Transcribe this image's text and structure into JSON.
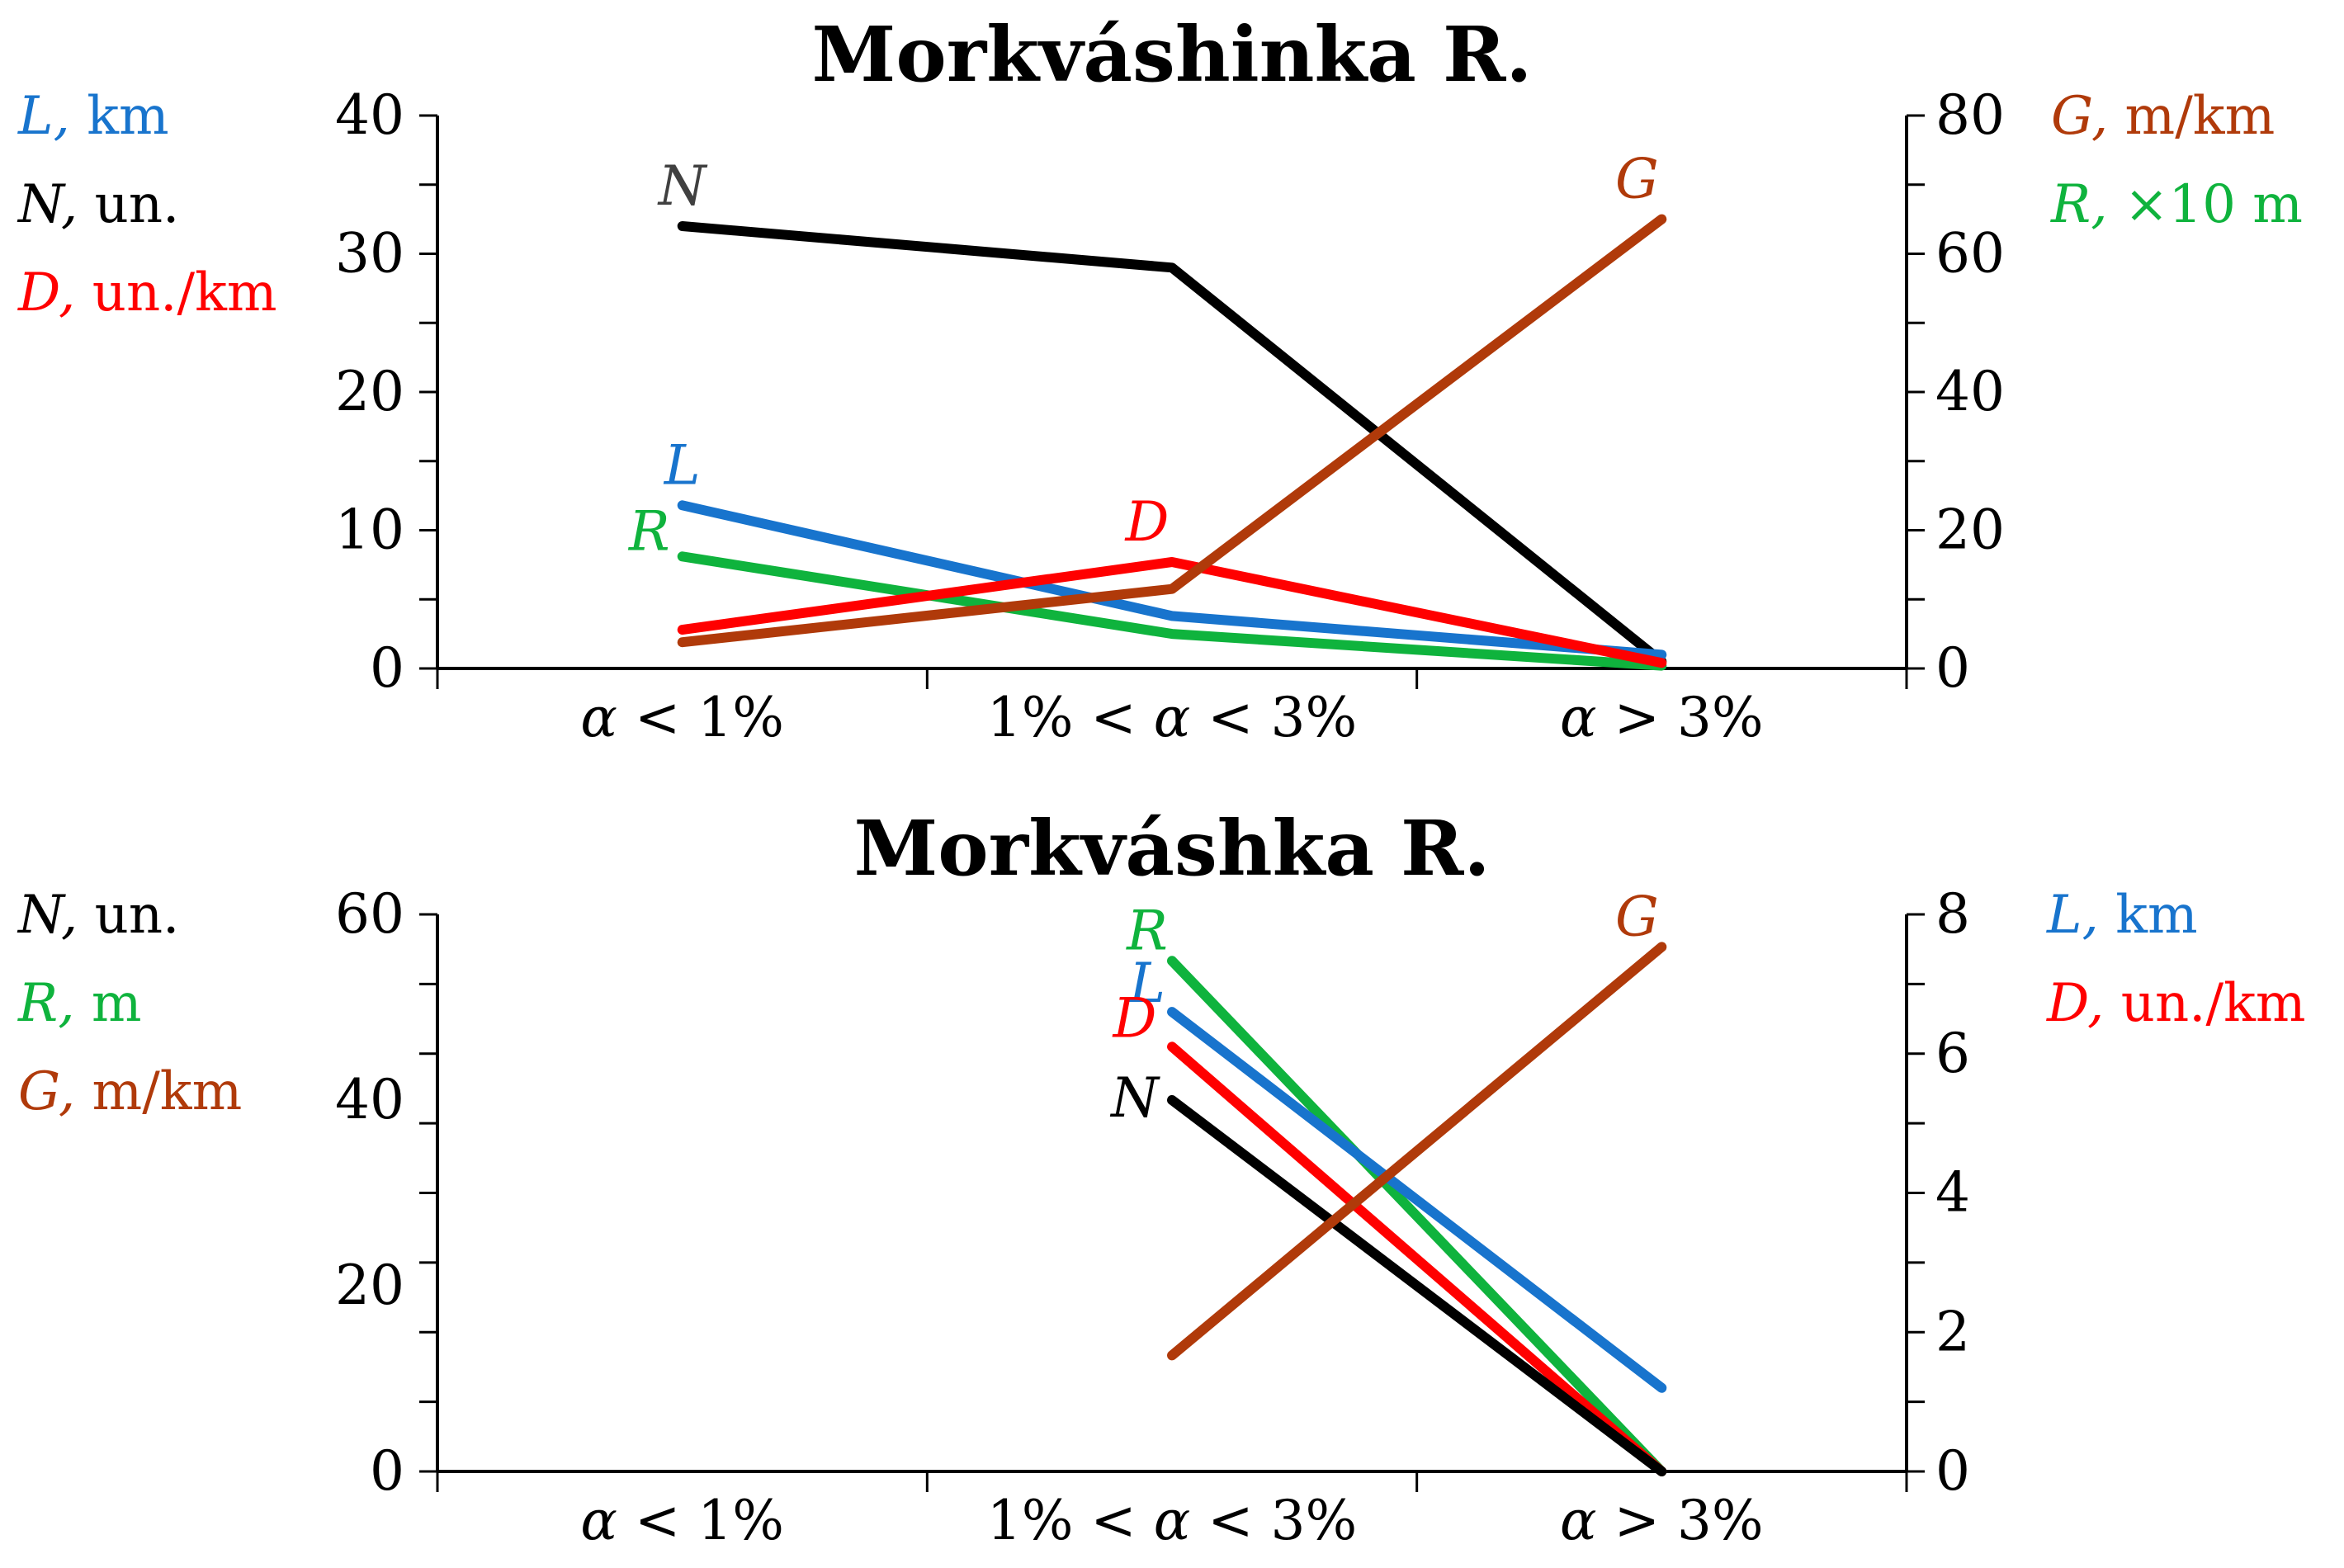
{
  "colors": {
    "L": "#1874cd",
    "N": "#000000",
    "D": "#ff0000",
    "G": "#b03a0a",
    "R": "#0fb33d",
    "N_label": "#404040"
  },
  "chart_data": [
    {
      "type": "line",
      "title": "Morkváshinka R.",
      "categories": [
        "α < 1%",
        "1% < α < 3%",
        "α > 3%"
      ],
      "left_axis": {
        "ylim": [
          0,
          40
        ],
        "ticks": [
          "0",
          "10",
          "20",
          "30",
          "40"
        ],
        "labels": [
          {
            "key": "L",
            "symbol": "L,",
            "unit": " km"
          },
          {
            "key": "N",
            "symbol": "N,",
            "unit": " un."
          },
          {
            "key": "D",
            "symbol": "D,",
            "unit": " un./km"
          }
        ]
      },
      "right_axis": {
        "ylim": [
          0,
          80
        ],
        "ticks": [
          "0",
          "20",
          "40",
          "60",
          "80"
        ],
        "labels": [
          {
            "key": "G",
            "symbol": "G,",
            "unit": " m/km"
          },
          {
            "key": "R",
            "symbol": "R,",
            "unit": " ×10 m"
          }
        ]
      },
      "series": [
        {
          "name": "N",
          "label": "N",
          "axis": "left",
          "values": [
            32,
            29,
            0.5
          ],
          "label_at": 0
        },
        {
          "name": "L",
          "label": "L",
          "axis": "left",
          "values": [
            11.8,
            3.8,
            1.0
          ],
          "label_at": 0
        },
        {
          "name": "R",
          "label": "R",
          "axis": "left",
          "values": [
            8.1,
            2.5,
            0.2
          ],
          "label_at": 0
        },
        {
          "name": "D",
          "label": "D",
          "axis": "left",
          "values": [
            2.8,
            7.7,
            0.4
          ],
          "label_at": 1
        },
        {
          "name": "G",
          "label": "G",
          "axis": "right",
          "values": [
            3.8,
            11.5,
            65
          ],
          "label_at": 2
        }
      ]
    },
    {
      "type": "line",
      "title": "Morkváshka R.",
      "categories": [
        "α < 1%",
        "1% < α < 3%",
        "α > 3%"
      ],
      "left_axis": {
        "ylim": [
          0,
          60
        ],
        "ticks": [
          "0",
          "20",
          "40",
          "60"
        ],
        "labels": [
          {
            "key": "N",
            "symbol": "N,",
            "unit": " un."
          },
          {
            "key": "R",
            "symbol": "R,",
            "unit": " m"
          },
          {
            "key": "G",
            "symbol": "G,",
            "unit": " m/km"
          }
        ]
      },
      "right_axis": {
        "ylim": [
          0,
          8
        ],
        "ticks": [
          "0",
          "2",
          "4",
          "6",
          "8"
        ],
        "labels": [
          {
            "key": "L",
            "symbol": "L,",
            "unit": " km"
          },
          {
            "key": "D",
            "symbol": "D,",
            "unit": " un./km"
          }
        ]
      },
      "series": [
        {
          "name": "R",
          "label": "R",
          "axis": "left",
          "values": [
            null,
            55,
            0
          ],
          "label_at": 1
        },
        {
          "name": "L",
          "label": "L",
          "axis": "right",
          "values": [
            null,
            6.6,
            1.2
          ],
          "label_at": 1
        },
        {
          "name": "D",
          "label": "D",
          "axis": "right",
          "values": [
            null,
            6.1,
            0
          ],
          "label_at": 1
        },
        {
          "name": "N",
          "label": "N",
          "axis": "left",
          "values": [
            null,
            40,
            0
          ],
          "label_at": 1
        },
        {
          "name": "G",
          "label": "G",
          "axis": "left",
          "values": [
            null,
            12.5,
            56.5
          ],
          "label_at": 2
        }
      ]
    }
  ]
}
